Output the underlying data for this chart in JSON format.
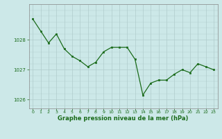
{
  "x": [
    0,
    1,
    2,
    3,
    4,
    5,
    6,
    7,
    8,
    9,
    10,
    11,
    12,
    13,
    14,
    15,
    16,
    17,
    18,
    19,
    20,
    21,
    22,
    23
  ],
  "y": [
    1028.7,
    1028.3,
    1027.9,
    1028.2,
    1027.7,
    1027.45,
    1027.3,
    1027.1,
    1027.25,
    1027.6,
    1027.75,
    1027.75,
    1027.75,
    1027.35,
    1026.15,
    1026.55,
    1026.65,
    1026.65,
    1026.85,
    1027.0,
    1026.9,
    1027.2,
    1027.1,
    1027.0
  ],
  "line_color": "#1a6b1a",
  "marker_color": "#1a6b1a",
  "bg_color": "#cce8e8",
  "grid_color": "#b0cccc",
  "xlabel": "Graphe pression niveau de la mer (hPa)",
  "xlabel_color": "#1a6b1a",
  "tick_color": "#1a6b1a",
  "axis_color": "#888888",
  "ylim": [
    1025.7,
    1029.2
  ],
  "yticks": [
    1026,
    1027,
    1028
  ],
  "xlim": [
    -0.5,
    23.5
  ],
  "xticks": [
    0,
    1,
    2,
    3,
    4,
    5,
    6,
    7,
    8,
    9,
    10,
    11,
    12,
    13,
    14,
    15,
    16,
    17,
    18,
    19,
    20,
    21,
    22,
    23
  ]
}
